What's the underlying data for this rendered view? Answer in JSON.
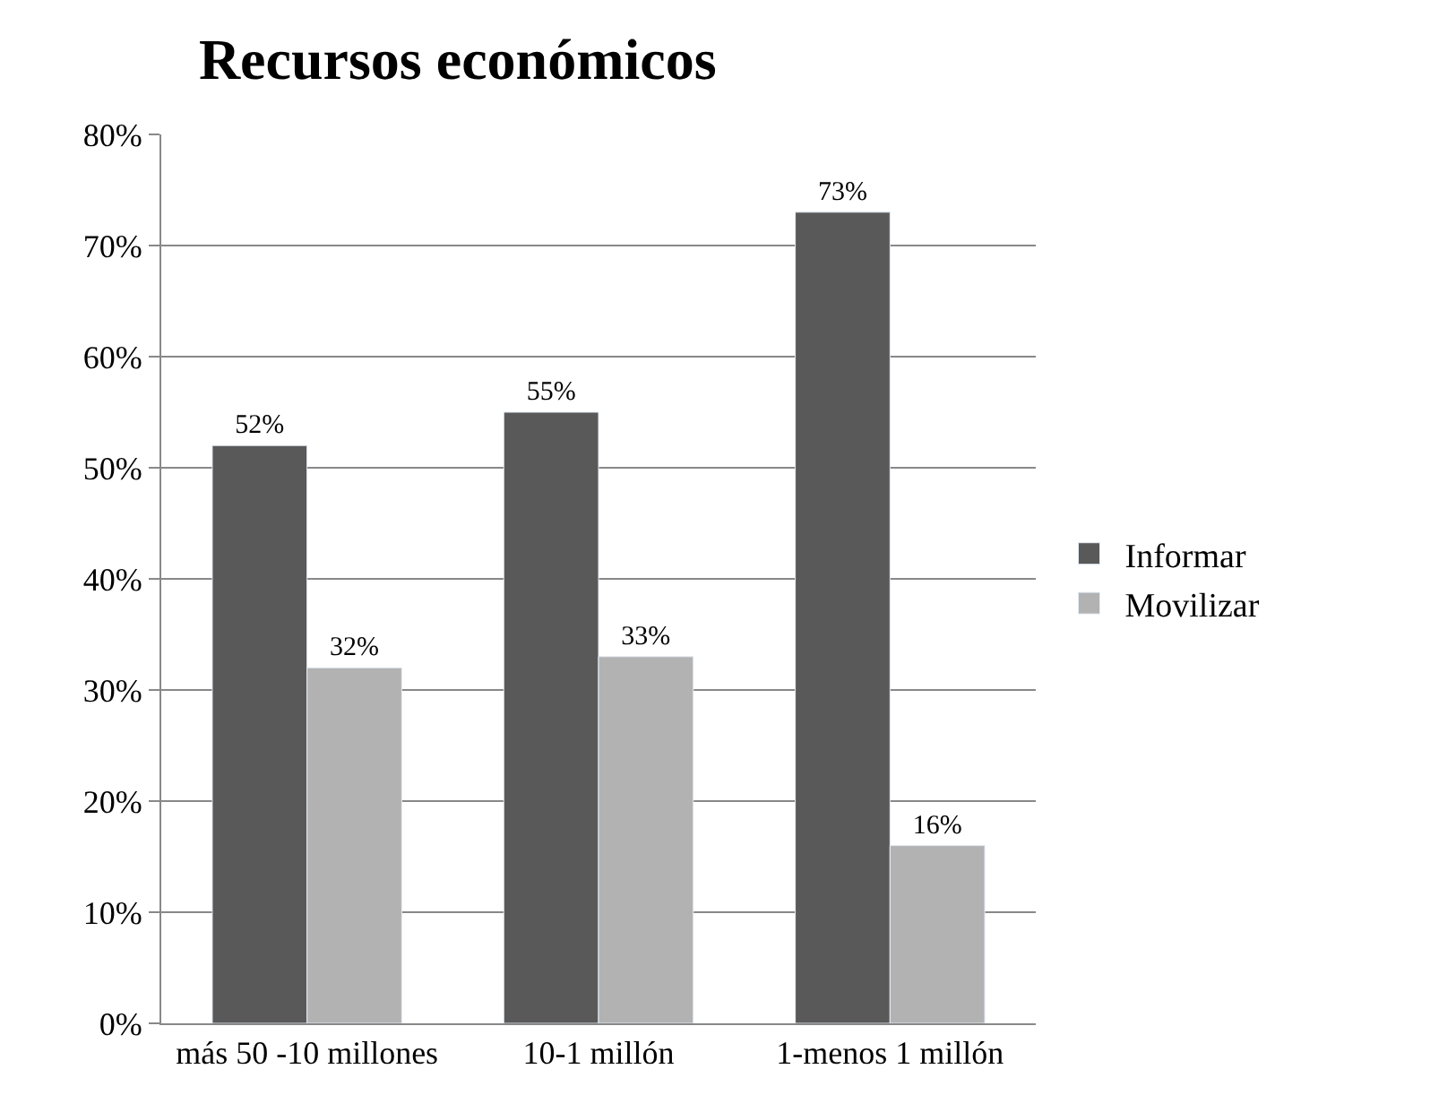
{
  "chart_data": {
    "type": "bar",
    "title": "Recursos económicos",
    "categories": [
      "más 50 -10 millones",
      "10-1 millón",
      "1-menos 1 millón"
    ],
    "series": [
      {
        "name": "Informar",
        "color": "#595959",
        "values": [
          52,
          55,
          73
        ],
        "value_labels": [
          "52%",
          "55%",
          "73%"
        ]
      },
      {
        "name": "Movilizar",
        "color": "#b2b2b2",
        "values": [
          32,
          33,
          16
        ],
        "value_labels": [
          "32%",
          "33%",
          "16%"
        ]
      }
    ],
    "ylim": [
      0,
      80
    ],
    "yticks": [
      {
        "value": 0,
        "label": "0%"
      },
      {
        "value": 10,
        "label": "10%"
      },
      {
        "value": 20,
        "label": "20%"
      },
      {
        "value": 30,
        "label": "30%"
      },
      {
        "value": 40,
        "label": "40%"
      },
      {
        "value": 50,
        "label": "50%"
      },
      {
        "value": 60,
        "label": "60%"
      },
      {
        "value": 70,
        "label": "70%"
      },
      {
        "value": 80,
        "label": "80%"
      }
    ],
    "grid": "y",
    "legend": "right"
  }
}
